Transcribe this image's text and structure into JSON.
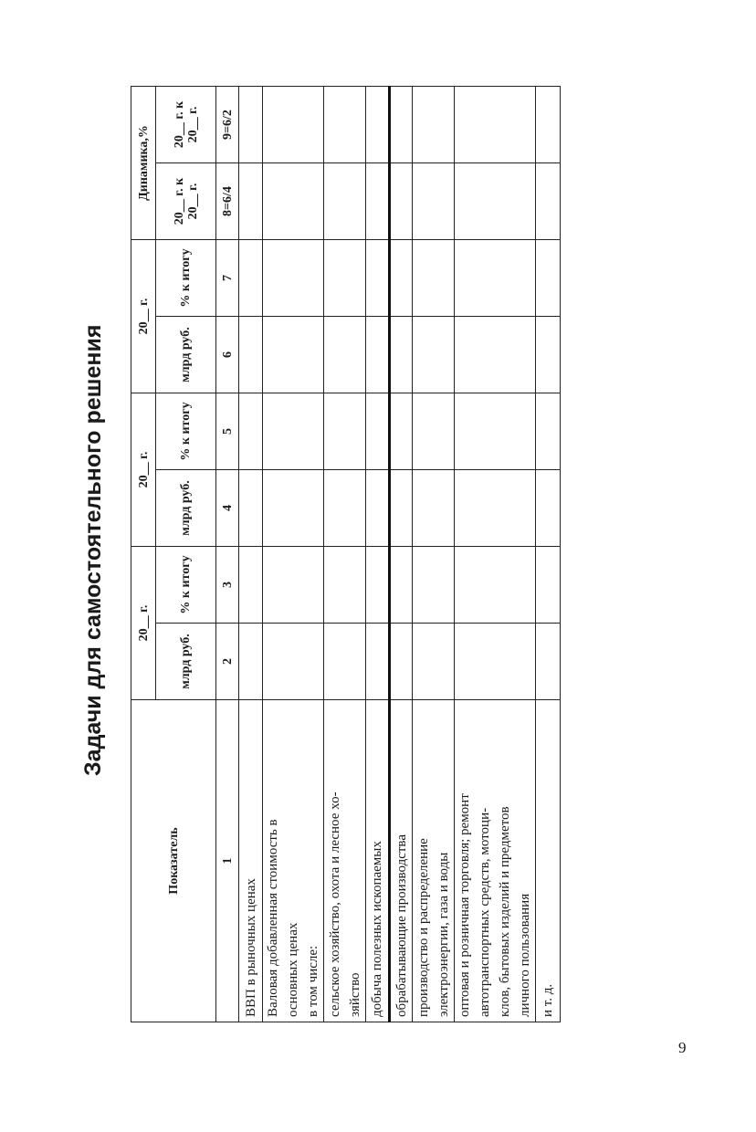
{
  "title": "Задачи для самостоятельного решения",
  "page_number": "9",
  "table": {
    "header": {
      "indicator": "Показатель",
      "year_groups": [
        "20__ г.",
        "20__ г.",
        "20__ г."
      ],
      "dynamics": "Динамика,%",
      "sub": [
        "млрд руб.",
        "% к итогу",
        "млрд руб.",
        "% к итогу",
        "млрд руб.",
        "% к итогу",
        "20__ г. к 20__ г.",
        "20__ г. к 20__ г."
      ],
      "numbers": [
        "1",
        "2",
        "3",
        "4",
        "5",
        "6",
        "7",
        "8=6/4",
        "9=6/2"
      ]
    },
    "rows": [
      "ВВП в рыночных ценах",
      "Валовая добавленная стоимость в\nосновных ценах\nв том числе:",
      "сельское хозяйство, охота и лесное хо-\nзяйство",
      "добыча полезных ископаемых",
      "обрабатывающие производства",
      "производство и распределение\nэлектроэнергии, газа и воды",
      "оптовая и розничная торговля; ремонт\nавтотранспортных средств, мотоци-\nклов, бытовых изделий и предметов\nличного пользования",
      "и т. д."
    ]
  }
}
